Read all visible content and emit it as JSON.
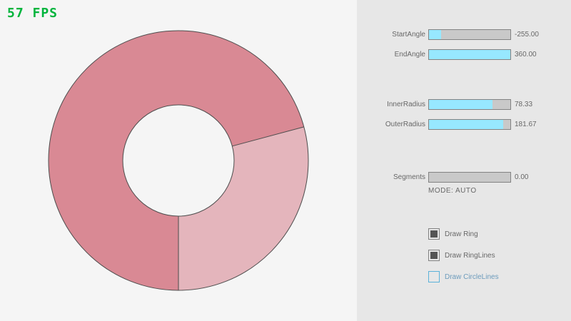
{
  "fps": {
    "text": "57 FPS",
    "color": "#00b43c"
  },
  "ring": {
    "colors": {
      "dark": "#d98994",
      "light": "#e4b5bc",
      "line": "#4d4d4d"
    }
  },
  "controls": {
    "sliders": [
      {
        "label": "StartAngle",
        "value": "-255.00",
        "fill_pct": 15
      },
      {
        "label": "EndAngle",
        "value": "360.00",
        "fill_pct": 100
      },
      {
        "label": "InnerRadius",
        "value": "78.33",
        "fill_pct": 78
      },
      {
        "label": "OuterRadius",
        "value": "181.67",
        "fill_pct": 91
      },
      {
        "label": "Segments",
        "value": "0.00",
        "fill_pct": 0
      }
    ],
    "mode_text": "MODE: AUTO",
    "checkboxes": [
      {
        "label": "Draw Ring",
        "checked": true
      },
      {
        "label": "Draw RingLines",
        "checked": true
      },
      {
        "label": "Draw CircleLines",
        "checked": false
      }
    ],
    "accent_color": "#97e8ff"
  }
}
